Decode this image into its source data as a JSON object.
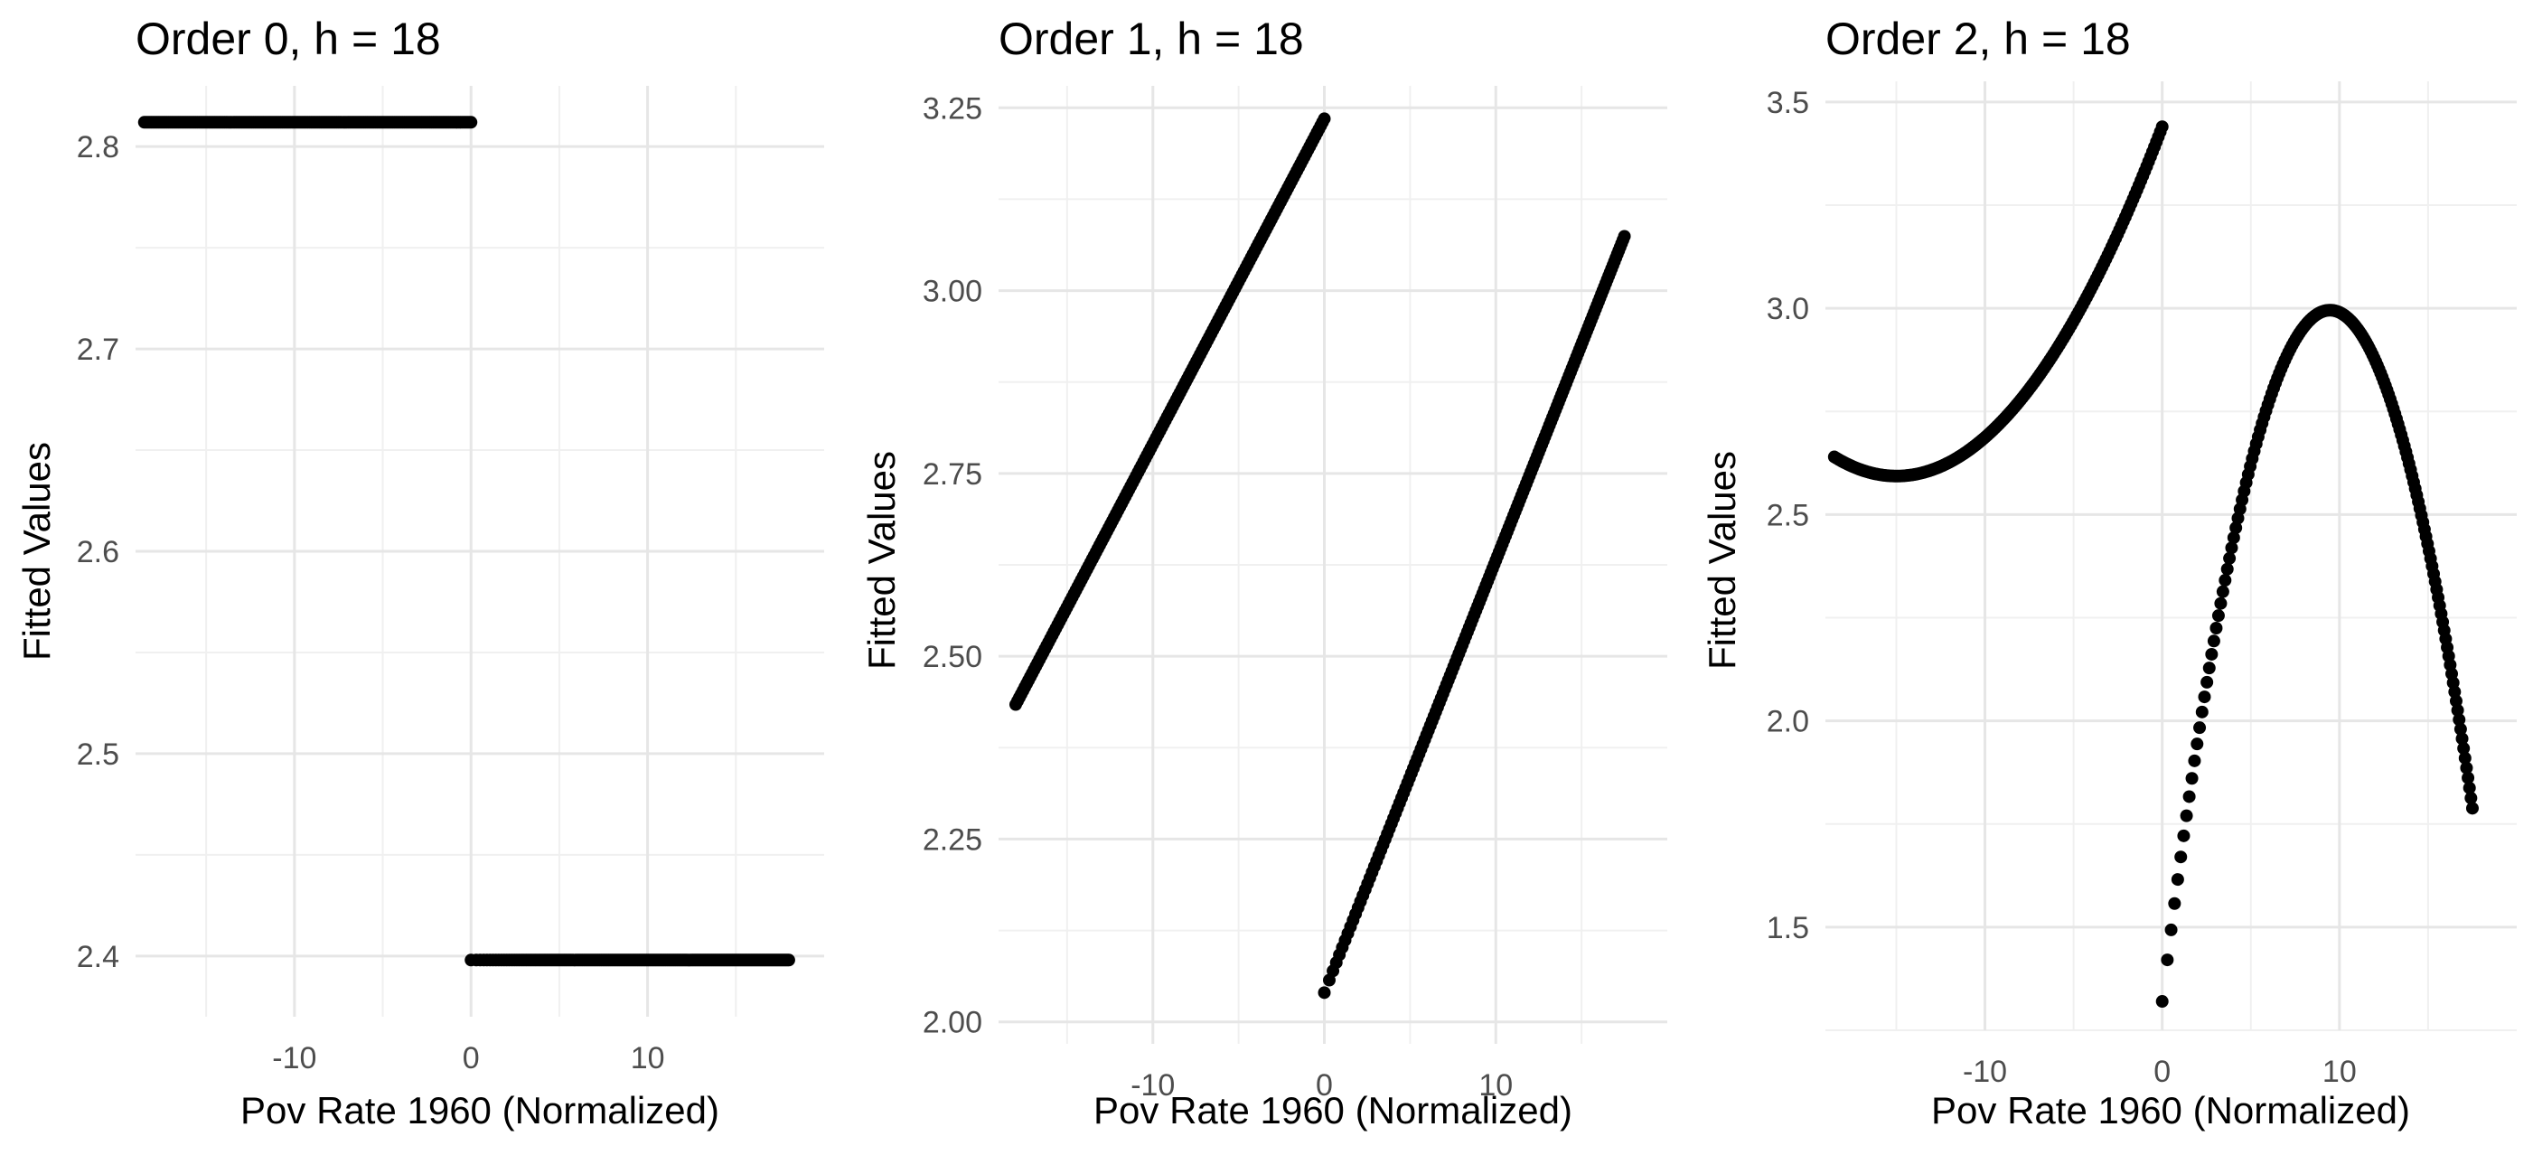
{
  "chart_data": [
    {
      "type": "scatter",
      "title": "Order 0, h = 18",
      "xlabel": "Pov Rate 1960 (Normalized)",
      "ylabel": "Fitted Values",
      "xlim": [
        -19,
        20
      ],
      "ylim": [
        2.37,
        2.83
      ],
      "xticks": [
        -10,
        0,
        10
      ],
      "yticks": [
        2.4,
        2.5,
        2.6,
        2.7,
        2.8
      ],
      "ytick_labels": [
        "2.4",
        "2.5",
        "2.6",
        "2.7",
        "2.8"
      ],
      "grid": true,
      "legend": "none",
      "series": [
        {
          "segment": "left",
          "x_range": [
            -18.5,
            0
          ],
          "fit": "constant",
          "coef": [
            2.812
          ]
        },
        {
          "segment": "right",
          "x_range": [
            0,
            18
          ],
          "fit": "constant",
          "coef": [
            2.398
          ]
        }
      ]
    },
    {
      "type": "scatter",
      "title": "Order 1, h = 18",
      "xlabel": "Pov Rate 1960 (Normalized)",
      "ylabel": "Fitted Values",
      "xlim": [
        -19,
        20
      ],
      "ylim": [
        1.97,
        3.28
      ],
      "xticks": [
        -10,
        0,
        10
      ],
      "yticks": [
        2.0,
        2.25,
        2.5,
        2.75,
        3.0,
        3.25
      ],
      "ytick_labels": [
        "2.00",
        "2.25",
        "2.50",
        "2.75",
        "3.00",
        "3.25"
      ],
      "grid": true,
      "legend": "none",
      "series": [
        {
          "segment": "left",
          "x_range": [
            -18,
            0
          ],
          "fit": "linear",
          "coef": [
            3.235,
            0.0445
          ]
        },
        {
          "segment": "right",
          "x_range": [
            0,
            17.5
          ],
          "fit": "linear",
          "coef": [
            2.04,
            0.0591
          ]
        }
      ]
    },
    {
      "type": "scatter",
      "title": "Order 2, h = 18",
      "xlabel": "Pov Rate 1960 (Normalized)",
      "ylabel": "Fitted Values",
      "xlim": [
        -19,
        20
      ],
      "ylim": [
        1.25,
        3.55
      ],
      "xticks": [
        -10,
        0,
        10
      ],
      "yticks": [
        1.5,
        2.0,
        2.5,
        3.0,
        3.5
      ],
      "ytick_labels": [
        "1.5",
        "2.0",
        "2.5",
        "3.0",
        "3.5"
      ],
      "grid": true,
      "legend": "none",
      "series": [
        {
          "segment": "left",
          "x_range": [
            -18.5,
            0
          ],
          "fit": "quadratic",
          "coef": [
            3.44,
            0.113,
            0.00377
          ]
        },
        {
          "segment": "right",
          "x_range": [
            0,
            17.5
          ],
          "fit": "quadratic",
          "coef": [
            1.32,
            0.354,
            -0.0187
          ]
        }
      ]
    }
  ]
}
